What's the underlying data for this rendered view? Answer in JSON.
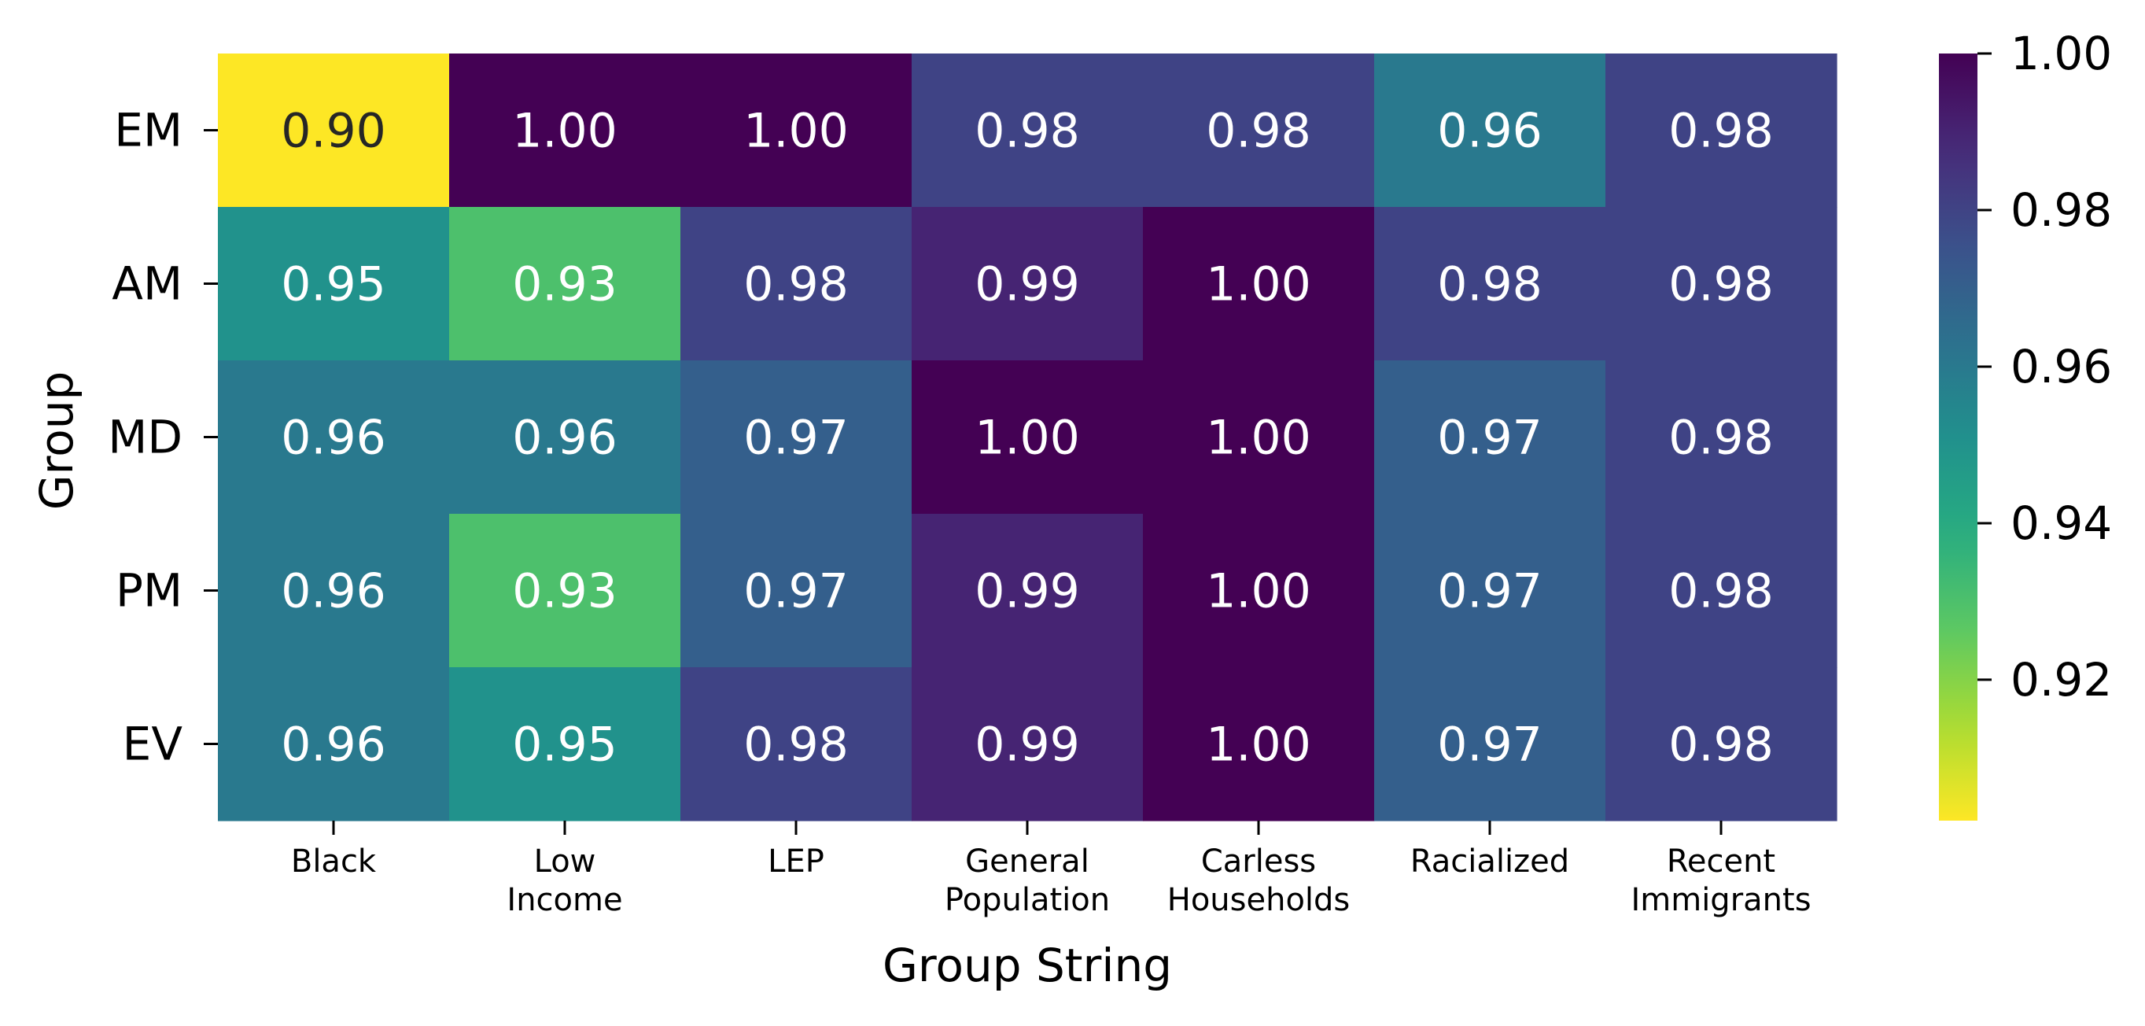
{
  "chart_data": {
    "type": "heatmap",
    "title": "",
    "xlabel": "Group String",
    "ylabel": "Group",
    "x_categories": [
      [
        "Black"
      ],
      [
        "Low",
        "Income"
      ],
      [
        "LEP"
      ],
      [
        "General",
        "Population"
      ],
      [
        "Carless",
        "Households"
      ],
      [
        "Racialized"
      ],
      [
        "Recent",
        "Immigrants"
      ]
    ],
    "y_categories": [
      "EM",
      "AM",
      "MD",
      "PM",
      "EV"
    ],
    "values": [
      [
        0.9,
        1.0,
        1.0,
        0.98,
        0.98,
        0.96,
        0.98
      ],
      [
        0.95,
        0.93,
        0.98,
        0.99,
        1.0,
        0.98,
        0.98
      ],
      [
        0.96,
        0.96,
        0.97,
        1.0,
        1.0,
        0.97,
        0.98
      ],
      [
        0.96,
        0.93,
        0.97,
        0.99,
        1.0,
        0.97,
        0.98
      ],
      [
        0.96,
        0.95,
        0.98,
        0.99,
        1.0,
        0.97,
        0.98
      ]
    ],
    "value_format": "0.00",
    "colormap": "viridis_r",
    "colorbar": {
      "vmin": 0.902,
      "vmax": 1.0,
      "ticks": [
        "1.00",
        "0.98",
        "0.96",
        "0.94",
        "0.92"
      ],
      "tick_values": [
        1.0,
        0.98,
        0.96,
        0.94,
        0.92
      ]
    },
    "grid": false,
    "legend": "colorbar-right"
  }
}
